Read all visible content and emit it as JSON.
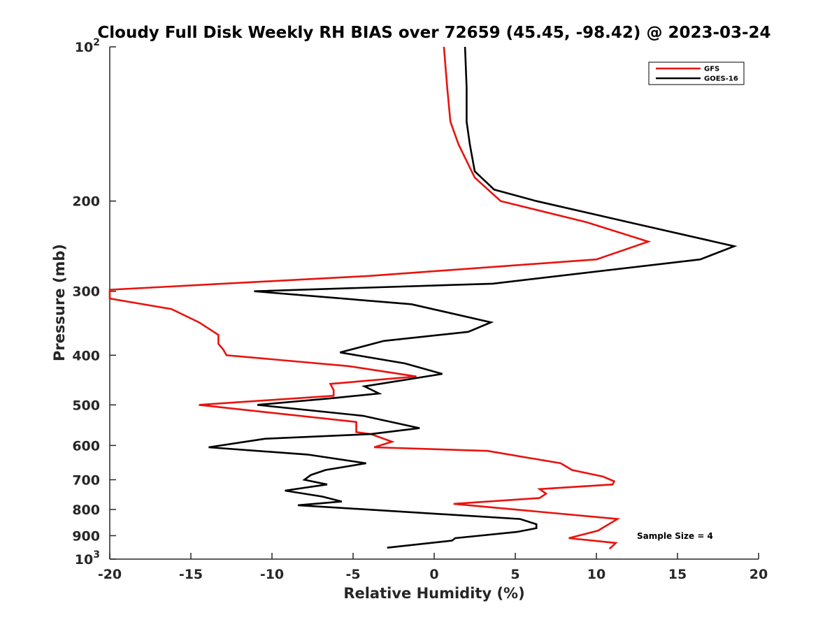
{
  "chart_data": {
    "type": "line",
    "title": "Cloudy Full Disk Weekly RH BIAS over 72659 (45.45, -98.42) @ 2023-03-24",
    "xlabel": "Relative Humidity (%)",
    "ylabel": "Pressure (mb)",
    "xlim": [
      -20,
      20
    ],
    "ylim": [
      100,
      1000
    ],
    "y_scale": "log",
    "y_reversed": true,
    "x_ticks": [
      "-20",
      "-15",
      "-10",
      "-5",
      "0",
      "5",
      "10",
      "15",
      "20"
    ],
    "y_ticks": [
      {
        "value": 100,
        "base": "10",
        "exp": "2"
      },
      {
        "value": 200,
        "label": "200"
      },
      {
        "value": 300,
        "label": "300"
      },
      {
        "value": 400,
        "label": "400"
      },
      {
        "value": 500,
        "label": "500"
      },
      {
        "value": 600,
        "label": "600"
      },
      {
        "value": 700,
        "label": "700"
      },
      {
        "value": 800,
        "label": "800"
      },
      {
        "value": 900,
        "label": "900"
      },
      {
        "value": 1000,
        "base": "10",
        "exp": "3"
      }
    ],
    "grid": false,
    "legend_position": "top-right",
    "annotation": "Sample Size = 4",
    "series": [
      {
        "name": "GFS",
        "color": "#e8130e",
        "x": [
          0.6,
          0.8,
          1.0,
          1.5,
          2.5,
          4.1,
          9.4,
          13.2,
          10.0,
          -4.0,
          -20.0,
          -20.0,
          -16.2,
          -14.5,
          -13.3,
          -13.3,
          -13.0,
          -12.8,
          -5.3,
          -1.1,
          -6.4,
          -6.2,
          -6.2,
          -14.5,
          -4.8,
          -4.8,
          -3.9,
          -2.6,
          -3.7,
          3.3,
          7.8,
          8.5,
          10.4,
          11.1,
          11.0,
          6.5,
          6.9,
          6.5,
          1.2,
          11.3,
          10.1,
          8.3,
          11.2,
          10.8
        ],
        "y": [
          100,
          120,
          140,
          155,
          180,
          200,
          220,
          240,
          260,
          280,
          298,
          310,
          325,
          345,
          365,
          380,
          390,
          400,
          420,
          440,
          455,
          468,
          480,
          500,
          540,
          565,
          570,
          590,
          605,
          615,
          650,
          670,
          690,
          705,
          715,
          730,
          745,
          760,
          780,
          835,
          880,
          910,
          930,
          955
        ]
      },
      {
        "name": "GOES-16",
        "color": "#000000",
        "x": [
          1.9,
          2.0,
          2.0,
          2.2,
          2.5,
          3.7,
          6.3,
          12.0,
          18.5,
          16.4,
          3.6,
          -11.1,
          -1.4,
          3.5,
          2.1,
          -3.1,
          -5.8,
          -1.8,
          0.5,
          -4.3,
          -3.4,
          -6.2,
          -10.9,
          -4.4,
          -0.9,
          -3.9,
          -10.4,
          -13.9,
          -7.8,
          -4.2,
          -6.7,
          -7.6,
          -8.0,
          -6.6,
          -9.2,
          -6.9,
          -5.7,
          -8.4,
          5.3,
          6.3,
          6.3,
          5.1,
          1.3,
          1.1,
          -2.9
        ],
        "y": [
          100,
          120,
          140,
          155,
          175,
          190,
          200,
          220,
          245,
          260,
          290,
          300,
          318,
          345,
          360,
          375,
          395,
          415,
          435,
          460,
          475,
          485,
          500,
          525,
          555,
          570,
          582,
          605,
          625,
          650,
          670,
          685,
          700,
          715,
          735,
          755,
          772,
          785,
          835,
          855,
          870,
          885,
          910,
          920,
          950
        ]
      }
    ]
  }
}
